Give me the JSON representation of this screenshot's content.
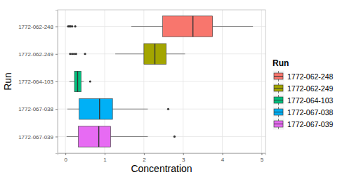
{
  "chart_data": {
    "type": "boxplot",
    "orientation": "horizontal",
    "x_label": "Concentration",
    "y_label": "Run",
    "legend_title": "Run",
    "legend": "right",
    "grid": true,
    "xlim": [
      -0.2,
      5.1
    ],
    "xticks": [
      0,
      1,
      2,
      3,
      4,
      5
    ],
    "categories": [
      "1772-062-248",
      "1772-062-249",
      "1772-064-103",
      "1772-067-038",
      "1772-067-039"
    ],
    "boxes": [
      {
        "name": "1772-062-248",
        "color": "#F8766D",
        "whisker_low": 1.68,
        "q1": 2.48,
        "median": 3.25,
        "q3": 3.75,
        "whisker_high": 4.78,
        "outliers": [
          0.07,
          0.1,
          0.13,
          0.17,
          0.25
        ]
      },
      {
        "name": "1772-062-249",
        "color": "#A3A500",
        "whisker_low": 1.27,
        "q1": 2.0,
        "median": 2.28,
        "q3": 2.57,
        "whisker_high": 3.05,
        "outliers": [
          0.12,
          0.17,
          0.22,
          0.27,
          0.5
        ]
      },
      {
        "name": "1772-064-103",
        "color": "#00BF7D",
        "whisker_low": 0.1,
        "q1": 0.23,
        "median": 0.31,
        "q3": 0.4,
        "whisker_high": 0.47,
        "outliers": [
          0.63
        ]
      },
      {
        "name": "1772-067-038",
        "color": "#00B0F6",
        "whisker_low": 0.05,
        "q1": 0.35,
        "median": 0.87,
        "q3": 1.2,
        "whisker_high": 2.1,
        "outliers": [
          2.62
        ]
      },
      {
        "name": "1772-067-039",
        "color": "#E76BF3",
        "whisker_low": 0.03,
        "q1": 0.33,
        "median": 0.85,
        "q3": 1.15,
        "whisker_high": 2.1,
        "outliers": [
          2.78
        ]
      }
    ]
  }
}
